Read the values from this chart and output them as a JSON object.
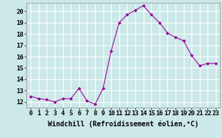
{
  "x": [
    0,
    1,
    2,
    3,
    4,
    5,
    6,
    7,
    8,
    9,
    10,
    11,
    12,
    13,
    14,
    15,
    16,
    17,
    18,
    19,
    20,
    21,
    22,
    23
  ],
  "y": [
    12.5,
    12.3,
    12.2,
    12.0,
    12.3,
    12.3,
    13.2,
    12.1,
    11.8,
    13.2,
    16.5,
    19.0,
    19.7,
    20.1,
    20.5,
    19.7,
    19.0,
    18.1,
    17.7,
    17.4,
    16.1,
    15.2,
    15.4,
    15.4
  ],
  "line_color": "#990099",
  "marker": "D",
  "marker_size": 2,
  "bg_color": "#cce8e8",
  "grid_color": "#ffffff",
  "xlabel": "Windchill (Refroidissement éolien,°C)",
  "xlabel_fontsize": 7,
  "tick_fontsize": 6.5,
  "ylim": [
    11.5,
    20.75
  ],
  "yticks": [
    12,
    13,
    14,
    15,
    16,
    17,
    18,
    19,
    20
  ],
  "xlim": [
    -0.5,
    23.5
  ]
}
